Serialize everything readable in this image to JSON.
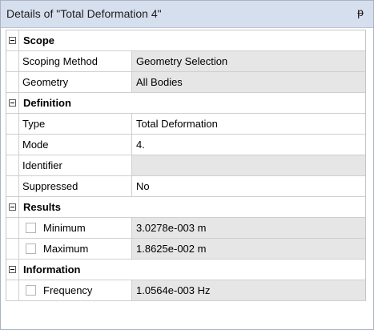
{
  "panel": {
    "title": "Details of \"Total Deformation 4\"",
    "pin_glyph": "ᵽ"
  },
  "sections": [
    {
      "label": "Scope",
      "rows": [
        {
          "name": "Scoping Method",
          "value": "Geometry Selection"
        },
        {
          "name": "Geometry",
          "value": "All Bodies"
        }
      ]
    },
    {
      "label": "Definition",
      "rows": [
        {
          "name": "Type",
          "value": "Total Deformation"
        },
        {
          "name": "Mode",
          "value": "4."
        },
        {
          "name": "Identifier",
          "value": ""
        },
        {
          "name": "Suppressed",
          "value": "No"
        }
      ]
    },
    {
      "label": "Results",
      "rows": [
        {
          "name": "Minimum",
          "value": "3.0278e-003 m"
        },
        {
          "name": "Maximum",
          "value": "1.8625e-002 m"
        }
      ]
    },
    {
      "label": "Information",
      "rows": [
        {
          "name": "Frequency",
          "value": "1.0564e-003 Hz"
        }
      ]
    }
  ],
  "colors": {
    "titlebar": "#d6dfee",
    "readonly_value_bg": "#e6e6e6",
    "grid_line": "#cfcfcf"
  }
}
